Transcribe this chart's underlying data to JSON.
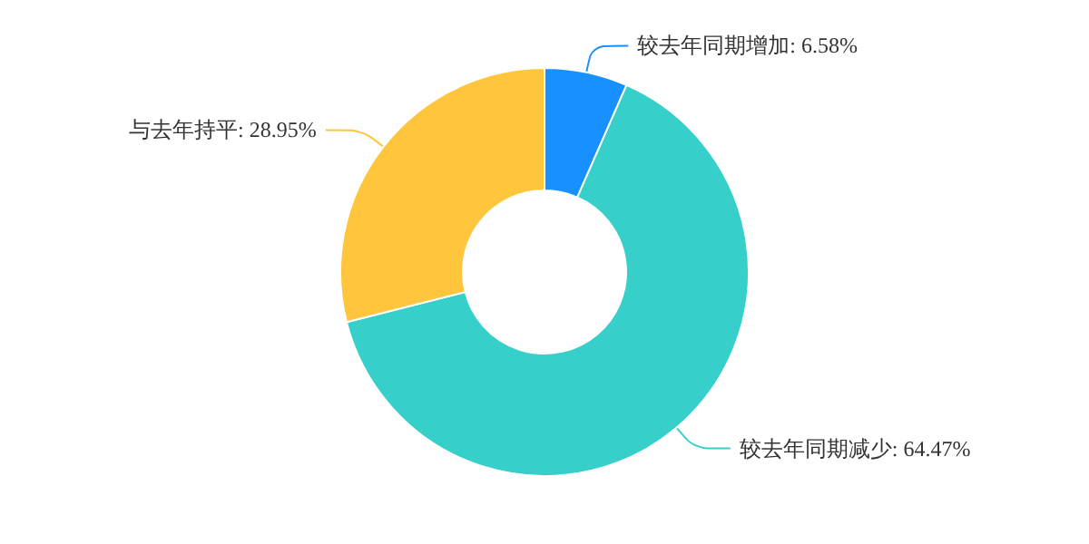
{
  "chart_data": {
    "type": "donut",
    "categories": [
      "较去年同期增加",
      "较去年同期减少",
      "与去年持平"
    ],
    "values": [
      6.58,
      64.47,
      28.95
    ],
    "value_labels": [
      "6.58%",
      "64.47%",
      "28.95%"
    ],
    "colors": [
      "#1890ff",
      "#36cfca",
      "#ffc53d"
    ],
    "legend": false
  }
}
